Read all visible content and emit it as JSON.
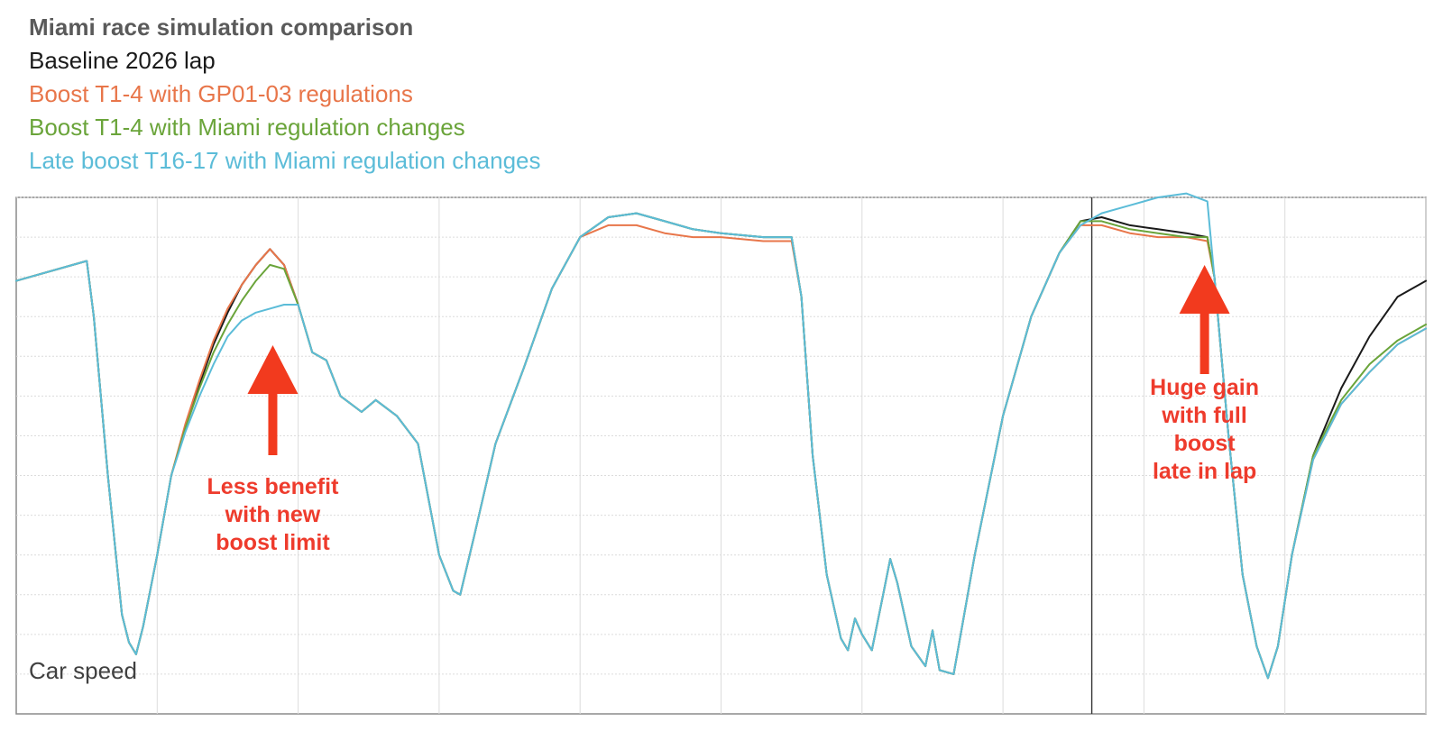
{
  "chart_data": {
    "type": "line",
    "title": "Miami race simulation comparison",
    "ylabel": "Car speed",
    "xlabel": "",
    "xlim": [
      0,
      100
    ],
    "ylim": [
      0,
      13
    ],
    "grid": true,
    "legend_position": "top-left",
    "series": [
      {
        "name": "Baseline 2026 lap",
        "color": "#1a1a1a",
        "points": [
          [
            0,
            10.9
          ],
          [
            5,
            11.4
          ],
          [
            5.5,
            10.0
          ],
          [
            6.5,
            6.0
          ],
          [
            7.5,
            2.5
          ],
          [
            8,
            1.8
          ],
          [
            8.5,
            1.5
          ],
          [
            9,
            2.2
          ],
          [
            10,
            4.0
          ],
          [
            11,
            6.0
          ],
          [
            12,
            7.2
          ],
          [
            13,
            8.3
          ],
          [
            14,
            9.3
          ],
          [
            15,
            10.1
          ],
          [
            16,
            10.8
          ],
          [
            17,
            11.3
          ],
          [
            18,
            11.7
          ],
          [
            19,
            11.3
          ],
          [
            20,
            10.3
          ],
          [
            21,
            9.1
          ],
          [
            22,
            8.9
          ],
          [
            23,
            8.0
          ],
          [
            24.5,
            7.6
          ],
          [
            25.5,
            7.9
          ],
          [
            27,
            7.5
          ],
          [
            28.5,
            6.8
          ],
          [
            30,
            4.0
          ],
          [
            31,
            3.1
          ],
          [
            31.5,
            3.0
          ],
          [
            32.5,
            4.5
          ],
          [
            34,
            6.8
          ],
          [
            36,
            8.7
          ],
          [
            38,
            10.7
          ],
          [
            40,
            12.0
          ],
          [
            42,
            12.5
          ],
          [
            44,
            12.6
          ],
          [
            46,
            12.4
          ],
          [
            48,
            12.2
          ],
          [
            50,
            12.1
          ],
          [
            53,
            12.0
          ],
          [
            55,
            12.0
          ],
          [
            55.7,
            10.5
          ],
          [
            56.5,
            6.5
          ],
          [
            57.5,
            3.5
          ],
          [
            58.5,
            1.9
          ],
          [
            59,
            1.6
          ],
          [
            59.5,
            2.4
          ],
          [
            60,
            2.0
          ],
          [
            60.7,
            1.6
          ],
          [
            61.5,
            3.0
          ],
          [
            62,
            3.9
          ],
          [
            62.5,
            3.3
          ],
          [
            63.5,
            1.7
          ],
          [
            64.5,
            1.2
          ],
          [
            65,
            2.1
          ],
          [
            65.5,
            1.1
          ],
          [
            66.5,
            1.0
          ],
          [
            68,
            4.0
          ],
          [
            70,
            7.5
          ],
          [
            72,
            10.0
          ],
          [
            74,
            11.6
          ],
          [
            75.5,
            12.4
          ],
          [
            77,
            12.5
          ],
          [
            79,
            12.3
          ],
          [
            81,
            12.2
          ],
          [
            83,
            12.1
          ],
          [
            84.5,
            12.0
          ],
          [
            85,
            11.0
          ],
          [
            86,
            7.0
          ],
          [
            87,
            3.5
          ],
          [
            88,
            1.7
          ],
          [
            88.8,
            0.9
          ],
          [
            89.5,
            1.7
          ],
          [
            90.5,
            4.0
          ],
          [
            92,
            6.5
          ],
          [
            94,
            8.2
          ],
          [
            96,
            9.5
          ],
          [
            98,
            10.5
          ],
          [
            100,
            10.9
          ]
        ]
      },
      {
        "name": "Boost T1-4 with GP01-03 regulations",
        "color": "#e8764a",
        "points": [
          [
            0,
            10.9
          ],
          [
            5,
            11.4
          ],
          [
            5.5,
            10.0
          ],
          [
            6.5,
            6.0
          ],
          [
            7.5,
            2.5
          ],
          [
            8,
            1.8
          ],
          [
            8.5,
            1.5
          ],
          [
            9,
            2.2
          ],
          [
            10,
            4.0
          ],
          [
            11,
            6.0
          ],
          [
            12,
            7.3
          ],
          [
            13,
            8.4
          ],
          [
            14,
            9.4
          ],
          [
            15,
            10.2
          ],
          [
            16,
            10.8
          ],
          [
            17,
            11.3
          ],
          [
            18,
            11.7
          ],
          [
            19,
            11.3
          ],
          [
            20,
            10.3
          ],
          [
            21,
            9.1
          ],
          [
            22,
            8.9
          ],
          [
            23,
            8.0
          ],
          [
            24.5,
            7.6
          ],
          [
            25.5,
            7.9
          ],
          [
            27,
            7.5
          ],
          [
            28.5,
            6.8
          ],
          [
            30,
            4.0
          ],
          [
            31,
            3.1
          ],
          [
            31.5,
            3.0
          ],
          [
            32.5,
            4.5
          ],
          [
            34,
            6.8
          ],
          [
            36,
            8.7
          ],
          [
            38,
            10.7
          ],
          [
            40,
            12.0
          ],
          [
            42,
            12.3
          ],
          [
            44,
            12.3
          ],
          [
            46,
            12.1
          ],
          [
            48,
            12.0
          ],
          [
            50,
            12.0
          ],
          [
            53,
            11.9
          ],
          [
            55,
            11.9
          ],
          [
            55.7,
            10.5
          ],
          [
            56.5,
            6.5
          ],
          [
            57.5,
            3.5
          ],
          [
            58.5,
            1.9
          ],
          [
            59,
            1.6
          ],
          [
            59.5,
            2.4
          ],
          [
            60,
            2.0
          ],
          [
            60.7,
            1.6
          ],
          [
            61.5,
            3.0
          ],
          [
            62,
            3.9
          ],
          [
            62.5,
            3.3
          ],
          [
            63.5,
            1.7
          ],
          [
            64.5,
            1.2
          ],
          [
            65,
            2.1
          ],
          [
            65.5,
            1.1
          ],
          [
            66.5,
            1.0
          ],
          [
            68,
            4.0
          ],
          [
            70,
            7.5
          ],
          [
            72,
            10.0
          ],
          [
            74,
            11.6
          ],
          [
            75.5,
            12.3
          ],
          [
            77,
            12.3
          ],
          [
            79,
            12.1
          ],
          [
            81,
            12.0
          ],
          [
            83,
            12.0
          ],
          [
            84.5,
            11.9
          ],
          [
            85,
            11.0
          ],
          [
            86,
            7.0
          ],
          [
            87,
            3.5
          ],
          [
            88,
            1.7
          ],
          [
            88.8,
            0.9
          ],
          [
            89.5,
            1.7
          ],
          [
            90.5,
            4.0
          ],
          [
            92,
            6.4
          ],
          [
            94,
            7.8
          ],
          [
            96,
            8.6
          ],
          [
            98,
            9.3
          ],
          [
            100,
            9.7
          ]
        ]
      },
      {
        "name": "Boost T1-4 with Miami regulation changes",
        "color": "#6aa43a",
        "points": [
          [
            0,
            10.9
          ],
          [
            5,
            11.4
          ],
          [
            5.5,
            10.0
          ],
          [
            6.5,
            6.0
          ],
          [
            7.5,
            2.5
          ],
          [
            8,
            1.8
          ],
          [
            8.5,
            1.5
          ],
          [
            9,
            2.2
          ],
          [
            10,
            4.0
          ],
          [
            11,
            6.0
          ],
          [
            12,
            7.2
          ],
          [
            13,
            8.2
          ],
          [
            14,
            9.1
          ],
          [
            15,
            9.8
          ],
          [
            16,
            10.4
          ],
          [
            17,
            10.9
          ],
          [
            18,
            11.3
          ],
          [
            19,
            11.2
          ],
          [
            20,
            10.3
          ],
          [
            21,
            9.1
          ],
          [
            22,
            8.9
          ],
          [
            23,
            8.0
          ],
          [
            24.5,
            7.6
          ],
          [
            25.5,
            7.9
          ],
          [
            27,
            7.5
          ],
          [
            28.5,
            6.8
          ],
          [
            30,
            4.0
          ],
          [
            31,
            3.1
          ],
          [
            31.5,
            3.0
          ],
          [
            32.5,
            4.5
          ],
          [
            34,
            6.8
          ],
          [
            36,
            8.7
          ],
          [
            38,
            10.7
          ],
          [
            40,
            12.0
          ],
          [
            42,
            12.5
          ],
          [
            44,
            12.6
          ],
          [
            46,
            12.4
          ],
          [
            48,
            12.2
          ],
          [
            50,
            12.1
          ],
          [
            53,
            12.0
          ],
          [
            55,
            12.0
          ],
          [
            55.7,
            10.5
          ],
          [
            56.5,
            6.5
          ],
          [
            57.5,
            3.5
          ],
          [
            58.5,
            1.9
          ],
          [
            59,
            1.6
          ],
          [
            59.5,
            2.4
          ],
          [
            60,
            2.0
          ],
          [
            60.7,
            1.6
          ],
          [
            61.5,
            3.0
          ],
          [
            62,
            3.9
          ],
          [
            62.5,
            3.3
          ],
          [
            63.5,
            1.7
          ],
          [
            64.5,
            1.2
          ],
          [
            65,
            2.1
          ],
          [
            65.5,
            1.1
          ],
          [
            66.5,
            1.0
          ],
          [
            68,
            4.0
          ],
          [
            70,
            7.5
          ],
          [
            72,
            10.0
          ],
          [
            74,
            11.6
          ],
          [
            75.5,
            12.4
          ],
          [
            77,
            12.4
          ],
          [
            79,
            12.2
          ],
          [
            81,
            12.1
          ],
          [
            83,
            12.0
          ],
          [
            84.5,
            12.0
          ],
          [
            85,
            11.0
          ],
          [
            86,
            7.0
          ],
          [
            87,
            3.5
          ],
          [
            88,
            1.7
          ],
          [
            88.8,
            0.9
          ],
          [
            89.5,
            1.7
          ],
          [
            90.5,
            4.0
          ],
          [
            92,
            6.5
          ],
          [
            94,
            7.9
          ],
          [
            96,
            8.8
          ],
          [
            98,
            9.4
          ],
          [
            100,
            9.8
          ]
        ]
      },
      {
        "name": "Late boost T16-17 with Miami regulation changes",
        "color": "#5bbcd8",
        "points": [
          [
            0,
            10.9
          ],
          [
            5,
            11.4
          ],
          [
            5.5,
            10.0
          ],
          [
            6.5,
            6.0
          ],
          [
            7.5,
            2.5
          ],
          [
            8,
            1.8
          ],
          [
            8.5,
            1.5
          ],
          [
            9,
            2.2
          ],
          [
            10,
            4.0
          ],
          [
            11,
            6.0
          ],
          [
            12,
            7.1
          ],
          [
            13,
            8.0
          ],
          [
            14,
            8.8
          ],
          [
            15,
            9.5
          ],
          [
            16,
            9.9
          ],
          [
            17,
            10.1
          ],
          [
            18,
            10.2
          ],
          [
            19,
            10.3
          ],
          [
            20,
            10.3
          ],
          [
            21,
            9.1
          ],
          [
            22,
            8.9
          ],
          [
            23,
            8.0
          ],
          [
            24.5,
            7.6
          ],
          [
            25.5,
            7.9
          ],
          [
            27,
            7.5
          ],
          [
            28.5,
            6.8
          ],
          [
            30,
            4.0
          ],
          [
            31,
            3.1
          ],
          [
            31.5,
            3.0
          ],
          [
            32.5,
            4.5
          ],
          [
            34,
            6.8
          ],
          [
            36,
            8.7
          ],
          [
            38,
            10.7
          ],
          [
            40,
            12.0
          ],
          [
            42,
            12.5
          ],
          [
            44,
            12.6
          ],
          [
            46,
            12.4
          ],
          [
            48,
            12.2
          ],
          [
            50,
            12.1
          ],
          [
            53,
            12.0
          ],
          [
            55,
            12.0
          ],
          [
            55.7,
            10.5
          ],
          [
            56.5,
            6.5
          ],
          [
            57.5,
            3.5
          ],
          [
            58.5,
            1.9
          ],
          [
            59,
            1.6
          ],
          [
            59.5,
            2.4
          ],
          [
            60,
            2.0
          ],
          [
            60.7,
            1.6
          ],
          [
            61.5,
            3.0
          ],
          [
            62,
            3.9
          ],
          [
            62.5,
            3.3
          ],
          [
            63.5,
            1.7
          ],
          [
            64.5,
            1.2
          ],
          [
            65,
            2.1
          ],
          [
            65.5,
            1.1
          ],
          [
            66.5,
            1.0
          ],
          [
            68,
            4.0
          ],
          [
            70,
            7.5
          ],
          [
            72,
            10.0
          ],
          [
            74,
            11.6
          ],
          [
            75.5,
            12.3
          ],
          [
            77,
            12.6
          ],
          [
            79,
            12.8
          ],
          [
            81,
            13.0
          ],
          [
            83,
            13.1
          ],
          [
            84.5,
            12.9
          ],
          [
            85,
            11.0
          ],
          [
            86,
            7.0
          ],
          [
            87,
            3.5
          ],
          [
            88,
            1.7
          ],
          [
            88.8,
            0.9
          ],
          [
            89.5,
            1.7
          ],
          [
            90.5,
            4.0
          ],
          [
            92,
            6.4
          ],
          [
            94,
            7.8
          ],
          [
            96,
            8.6
          ],
          [
            98,
            9.3
          ],
          [
            100,
            9.7
          ]
        ]
      }
    ],
    "annotations": [
      {
        "lines": [
          "Less benefit",
          "with new",
          "boost limit"
        ],
        "arrow": "up",
        "x": 18.2
      },
      {
        "lines": [
          "Huge gain",
          "with full",
          "boost",
          "late in lap"
        ],
        "arrow": "up",
        "x": 84.3
      }
    ],
    "marker_line_x": 76.3
  }
}
